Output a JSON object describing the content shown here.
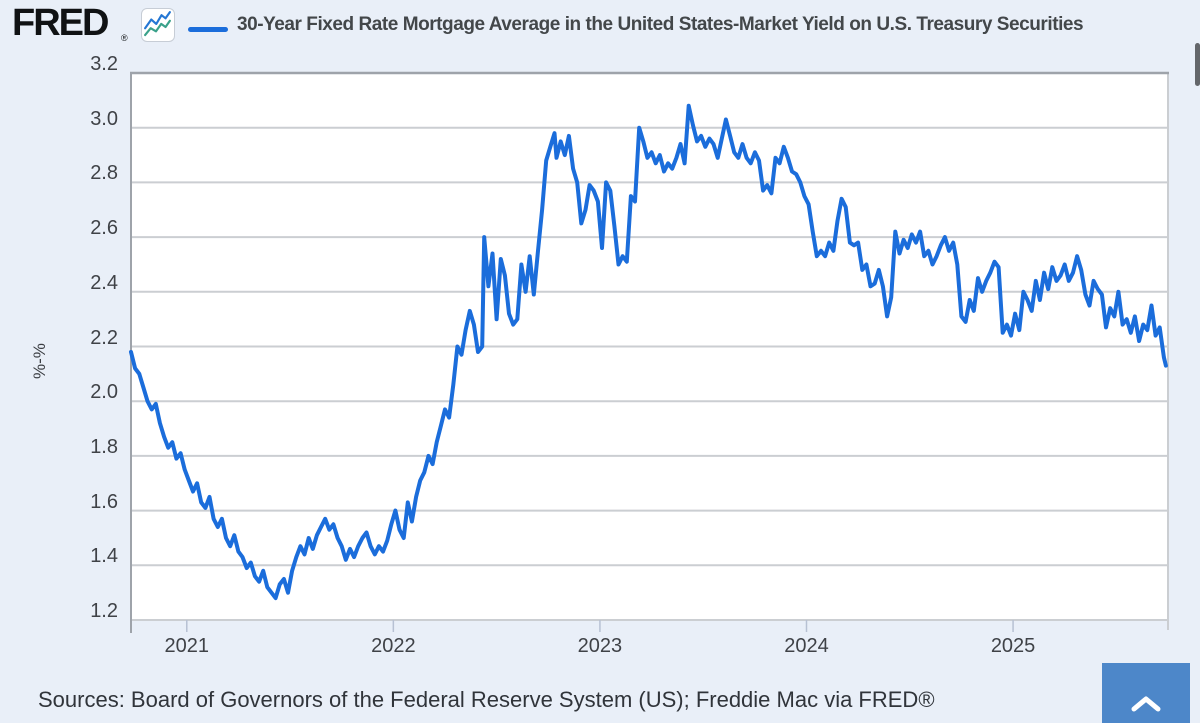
{
  "header": {
    "logo_text": "FRED",
    "registered_mark": "®",
    "series_title": "30-Year Fixed Rate Mortgage Average in the United States-Market Yield on U.S. Treasury Securities"
  },
  "footer": {
    "sources": "Sources: Board of Governors of the Federal Reserve System (US); Freddie Mac via FRED®"
  },
  "colors": {
    "series_line": "#1b6ddb",
    "page_background": "#e9eff8",
    "plot_background": "#ffffff",
    "gridline": "#cbced2",
    "axis_border": "#9ea3aa",
    "tick_mark": "#b7c1d3",
    "axis_text": "#3f4247",
    "title_text": "#43474a",
    "scroll_button": "#4d87c9",
    "scrollbar_thumb": "#63666a",
    "logo_icon_blue": "#2577d4",
    "logo_icon_teal": "#3aa18a"
  },
  "chart_data": {
    "type": "line",
    "title": "30-Year Fixed Rate Mortgage Average in the United States-Market Yield on U.S. Treasury Securities",
    "xlabel": "",
    "ylabel": "%-%",
    "ylim": [
      1.2,
      3.2
    ],
    "xlim": [
      2020.73,
      2025.75
    ],
    "y_ticks": [
      3.2,
      3.0,
      2.8,
      2.6,
      2.4,
      2.2,
      2.0,
      1.8,
      1.6,
      1.4,
      1.2
    ],
    "x_ticks": [
      2021,
      2022,
      2023,
      2024,
      2025
    ],
    "grid": true,
    "legend_position": "top",
    "series": [
      {
        "name": "30-Year Fixed Rate Mortgage Average in the United States-Market Yield on U.S. Treasury Securities",
        "points": [
          [
            2020.73,
            2.18
          ],
          [
            2020.75,
            2.12
          ],
          [
            2020.77,
            2.1
          ],
          [
            2020.79,
            2.05
          ],
          [
            2020.81,
            2.0
          ],
          [
            2020.83,
            1.97
          ],
          [
            2020.85,
            1.99
          ],
          [
            2020.87,
            1.92
          ],
          [
            2020.89,
            1.87
          ],
          [
            2020.91,
            1.83
          ],
          [
            2020.93,
            1.85
          ],
          [
            2020.95,
            1.79
          ],
          [
            2020.97,
            1.81
          ],
          [
            2020.99,
            1.75
          ],
          [
            2021.01,
            1.71
          ],
          [
            2021.03,
            1.67
          ],
          [
            2021.05,
            1.7
          ],
          [
            2021.07,
            1.63
          ],
          [
            2021.09,
            1.61
          ],
          [
            2021.11,
            1.65
          ],
          [
            2021.13,
            1.57
          ],
          [
            2021.15,
            1.54
          ],
          [
            2021.17,
            1.57
          ],
          [
            2021.19,
            1.5
          ],
          [
            2021.21,
            1.47
          ],
          [
            2021.23,
            1.51
          ],
          [
            2021.25,
            1.45
          ],
          [
            2021.27,
            1.43
          ],
          [
            2021.29,
            1.39
          ],
          [
            2021.31,
            1.41
          ],
          [
            2021.33,
            1.36
          ],
          [
            2021.35,
            1.34
          ],
          [
            2021.37,
            1.38
          ],
          [
            2021.39,
            1.32
          ],
          [
            2021.41,
            1.3
          ],
          [
            2021.43,
            1.28
          ],
          [
            2021.45,
            1.33
          ],
          [
            2021.47,
            1.35
          ],
          [
            2021.49,
            1.3
          ],
          [
            2021.51,
            1.38
          ],
          [
            2021.53,
            1.43
          ],
          [
            2021.55,
            1.47
          ],
          [
            2021.57,
            1.44
          ],
          [
            2021.59,
            1.5
          ],
          [
            2021.61,
            1.46
          ],
          [
            2021.63,
            1.51
          ],
          [
            2021.65,
            1.54
          ],
          [
            2021.67,
            1.57
          ],
          [
            2021.69,
            1.53
          ],
          [
            2021.71,
            1.55
          ],
          [
            2021.73,
            1.5
          ],
          [
            2021.75,
            1.47
          ],
          [
            2021.77,
            1.42
          ],
          [
            2021.79,
            1.46
          ],
          [
            2021.81,
            1.43
          ],
          [
            2021.83,
            1.47
          ],
          [
            2021.85,
            1.5
          ],
          [
            2021.87,
            1.52
          ],
          [
            2021.89,
            1.47
          ],
          [
            2021.91,
            1.44
          ],
          [
            2021.93,
            1.47
          ],
          [
            2021.95,
            1.45
          ],
          [
            2021.97,
            1.49
          ],
          [
            2021.99,
            1.55
          ],
          [
            2022.01,
            1.6
          ],
          [
            2022.03,
            1.53
          ],
          [
            2022.05,
            1.5
          ],
          [
            2022.07,
            1.63
          ],
          [
            2022.09,
            1.56
          ],
          [
            2022.11,
            1.65
          ],
          [
            2022.13,
            1.71
          ],
          [
            2022.15,
            1.74
          ],
          [
            2022.17,
            1.8
          ],
          [
            2022.19,
            1.77
          ],
          [
            2022.21,
            1.85
          ],
          [
            2022.23,
            1.91
          ],
          [
            2022.25,
            1.97
          ],
          [
            2022.27,
            1.94
          ],
          [
            2022.29,
            2.06
          ],
          [
            2022.31,
            2.2
          ],
          [
            2022.33,
            2.17
          ],
          [
            2022.35,
            2.26
          ],
          [
            2022.37,
            2.33
          ],
          [
            2022.39,
            2.28
          ],
          [
            2022.41,
            2.18
          ],
          [
            2022.43,
            2.2
          ],
          [
            2022.44,
            2.6
          ],
          [
            2022.46,
            2.42
          ],
          [
            2022.48,
            2.54
          ],
          [
            2022.5,
            2.3
          ],
          [
            2022.52,
            2.52
          ],
          [
            2022.54,
            2.46
          ],
          [
            2022.56,
            2.32
          ],
          [
            2022.58,
            2.28
          ],
          [
            2022.6,
            2.3
          ],
          [
            2022.62,
            2.5
          ],
          [
            2022.64,
            2.4
          ],
          [
            2022.66,
            2.53
          ],
          [
            2022.68,
            2.39
          ],
          [
            2022.7,
            2.55
          ],
          [
            2022.72,
            2.7
          ],
          [
            2022.74,
            2.88
          ],
          [
            2022.76,
            2.93
          ],
          [
            2022.78,
            2.98
          ],
          [
            2022.79,
            2.89
          ],
          [
            2022.81,
            2.95
          ],
          [
            2022.83,
            2.9
          ],
          [
            2022.85,
            2.97
          ],
          [
            2022.87,
            2.85
          ],
          [
            2022.89,
            2.8
          ],
          [
            2022.91,
            2.65
          ],
          [
            2022.93,
            2.7
          ],
          [
            2022.95,
            2.79
          ],
          [
            2022.97,
            2.77
          ],
          [
            2022.99,
            2.73
          ],
          [
            2023.01,
            2.56
          ],
          [
            2023.03,
            2.8
          ],
          [
            2023.05,
            2.77
          ],
          [
            2023.07,
            2.64
          ],
          [
            2023.09,
            2.5
          ],
          [
            2023.11,
            2.53
          ],
          [
            2023.13,
            2.51
          ],
          [
            2023.15,
            2.75
          ],
          [
            2023.17,
            2.73
          ],
          [
            2023.19,
            3.0
          ],
          [
            2023.21,
            2.95
          ],
          [
            2023.23,
            2.89
          ],
          [
            2023.25,
            2.91
          ],
          [
            2023.27,
            2.87
          ],
          [
            2023.29,
            2.9
          ],
          [
            2023.31,
            2.84
          ],
          [
            2023.33,
            2.87
          ],
          [
            2023.35,
            2.85
          ],
          [
            2023.37,
            2.89
          ],
          [
            2023.39,
            2.94
          ],
          [
            2023.41,
            2.87
          ],
          [
            2023.43,
            3.08
          ],
          [
            2023.45,
            3.01
          ],
          [
            2023.47,
            2.95
          ],
          [
            2023.49,
            2.97
          ],
          [
            2023.51,
            2.93
          ],
          [
            2023.53,
            2.96
          ],
          [
            2023.55,
            2.94
          ],
          [
            2023.57,
            2.89
          ],
          [
            2023.59,
            2.96
          ],
          [
            2023.61,
            3.03
          ],
          [
            2023.63,
            2.97
          ],
          [
            2023.65,
            2.91
          ],
          [
            2023.67,
            2.89
          ],
          [
            2023.69,
            2.94
          ],
          [
            2023.71,
            2.89
          ],
          [
            2023.73,
            2.87
          ],
          [
            2023.75,
            2.91
          ],
          [
            2023.77,
            2.88
          ],
          [
            2023.79,
            2.77
          ],
          [
            2023.81,
            2.79
          ],
          [
            2023.83,
            2.76
          ],
          [
            2023.85,
            2.89
          ],
          [
            2023.87,
            2.87
          ],
          [
            2023.89,
            2.93
          ],
          [
            2023.91,
            2.89
          ],
          [
            2023.93,
            2.84
          ],
          [
            2023.95,
            2.83
          ],
          [
            2023.97,
            2.8
          ],
          [
            2023.99,
            2.75
          ],
          [
            2024.01,
            2.72
          ],
          [
            2024.03,
            2.62
          ],
          [
            2024.05,
            2.53
          ],
          [
            2024.07,
            2.55
          ],
          [
            2024.09,
            2.53
          ],
          [
            2024.11,
            2.58
          ],
          [
            2024.13,
            2.55
          ],
          [
            2024.15,
            2.66
          ],
          [
            2024.17,
            2.74
          ],
          [
            2024.19,
            2.71
          ],
          [
            2024.21,
            2.58
          ],
          [
            2024.23,
            2.57
          ],
          [
            2024.25,
            2.58
          ],
          [
            2024.27,
            2.48
          ],
          [
            2024.29,
            2.5
          ],
          [
            2024.31,
            2.42
          ],
          [
            2024.33,
            2.43
          ],
          [
            2024.35,
            2.48
          ],
          [
            2024.37,
            2.42
          ],
          [
            2024.39,
            2.31
          ],
          [
            2024.41,
            2.38
          ],
          [
            2024.43,
            2.62
          ],
          [
            2024.45,
            2.54
          ],
          [
            2024.47,
            2.59
          ],
          [
            2024.49,
            2.56
          ],
          [
            2024.51,
            2.61
          ],
          [
            2024.53,
            2.58
          ],
          [
            2024.55,
            2.62
          ],
          [
            2024.57,
            2.53
          ],
          [
            2024.59,
            2.55
          ],
          [
            2024.61,
            2.5
          ],
          [
            2024.63,
            2.53
          ],
          [
            2024.65,
            2.57
          ],
          [
            2024.67,
            2.6
          ],
          [
            2024.69,
            2.55
          ],
          [
            2024.71,
            2.58
          ],
          [
            2024.73,
            2.5
          ],
          [
            2024.75,
            2.31
          ],
          [
            2024.77,
            2.29
          ],
          [
            2024.79,
            2.37
          ],
          [
            2024.81,
            2.33
          ],
          [
            2024.83,
            2.45
          ],
          [
            2024.85,
            2.4
          ],
          [
            2024.87,
            2.44
          ],
          [
            2024.89,
            2.47
          ],
          [
            2024.91,
            2.51
          ],
          [
            2024.93,
            2.49
          ],
          [
            2024.95,
            2.25
          ],
          [
            2024.97,
            2.28
          ],
          [
            2024.99,
            2.24
          ],
          [
            2025.01,
            2.32
          ],
          [
            2025.03,
            2.26
          ],
          [
            2025.05,
            2.4
          ],
          [
            2025.07,
            2.37
          ],
          [
            2025.09,
            2.33
          ],
          [
            2025.11,
            2.44
          ],
          [
            2025.13,
            2.37
          ],
          [
            2025.15,
            2.47
          ],
          [
            2025.17,
            2.41
          ],
          [
            2025.19,
            2.49
          ],
          [
            2025.21,
            2.44
          ],
          [
            2025.23,
            2.46
          ],
          [
            2025.25,
            2.5
          ],
          [
            2025.27,
            2.44
          ],
          [
            2025.29,
            2.47
          ],
          [
            2025.31,
            2.53
          ],
          [
            2025.33,
            2.48
          ],
          [
            2025.35,
            2.39
          ],
          [
            2025.37,
            2.35
          ],
          [
            2025.39,
            2.44
          ],
          [
            2025.41,
            2.41
          ],
          [
            2025.43,
            2.39
          ],
          [
            2025.45,
            2.27
          ],
          [
            2025.47,
            2.34
          ],
          [
            2025.49,
            2.31
          ],
          [
            2025.51,
            2.4
          ],
          [
            2025.53,
            2.28
          ],
          [
            2025.55,
            2.3
          ],
          [
            2025.57,
            2.25
          ],
          [
            2025.59,
            2.31
          ],
          [
            2025.61,
            2.22
          ],
          [
            2025.63,
            2.28
          ],
          [
            2025.65,
            2.26
          ],
          [
            2025.67,
            2.35
          ],
          [
            2025.69,
            2.24
          ],
          [
            2025.71,
            2.27
          ],
          [
            2025.73,
            2.16
          ],
          [
            2025.74,
            2.13
          ]
        ]
      }
    ]
  }
}
